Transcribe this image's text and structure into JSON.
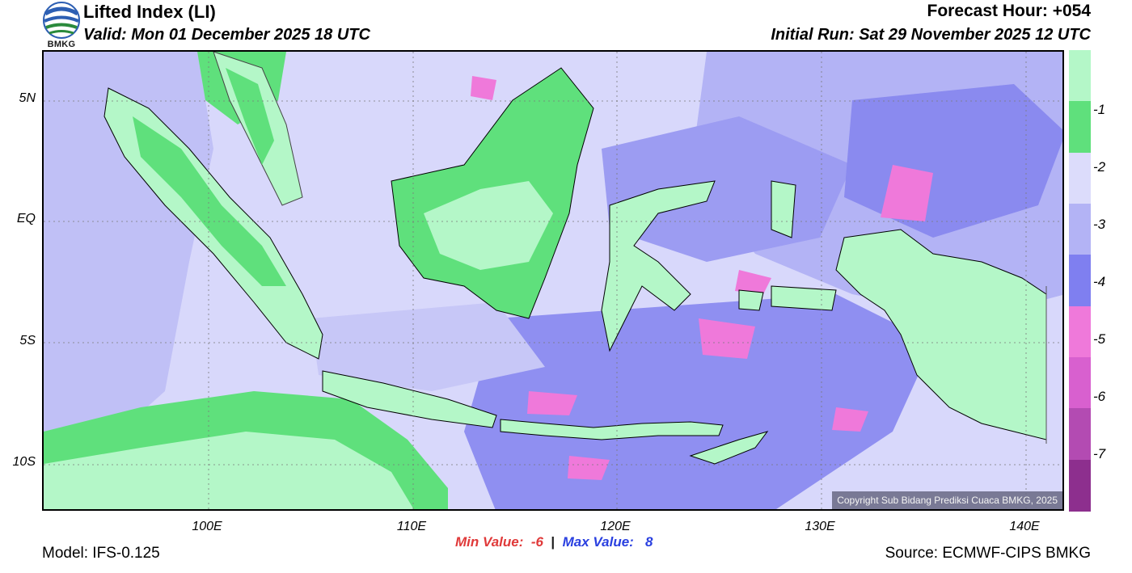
{
  "header": {
    "title": "Lifted Index (LI)",
    "valid": "Valid: Mon 01 December 2025 18 UTC",
    "forecast_hour": "Forecast Hour: +054",
    "initial_run": "Initial Run: Sat 29 November 2025 12 UTC"
  },
  "logo": {
    "text": "BMKG"
  },
  "map": {
    "lat_labels": [
      "5N",
      "EQ",
      "5S",
      "10S"
    ],
    "lon_labels": [
      "100E",
      "110E",
      "120E",
      "130E",
      "140E"
    ],
    "copyright": "Copyright Sub Bidang Prediksi Cuaca BMKG, 2025"
  },
  "colorbar": {
    "labels": [
      "-1",
      "-2",
      "-3",
      "-4",
      "-5",
      "-6",
      "-7"
    ],
    "colors": [
      "#b4f7c8",
      "#5fe07c",
      "#dcdcfb",
      "#b3b3f5",
      "#7f7ff0",
      "#ef79da",
      "#d860cf",
      "#b34bb2",
      "#8d2f8e"
    ]
  },
  "stats": {
    "min_label": "Min Value:",
    "min_value": "-6",
    "separator": "|",
    "max_label": "Max Value:",
    "max_value": "8"
  },
  "footer": {
    "model": "Model: IFS-0.125",
    "source": "Source: ECMWF-CIPS BMKG"
  }
}
